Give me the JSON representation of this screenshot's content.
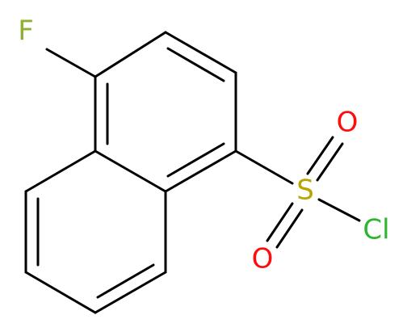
{
  "molecule": {
    "atoms": [
      {
        "label": "F"
      },
      {
        "label": "S"
      },
      {
        "label": "O"
      },
      {
        "label": "O"
      },
      {
        "label": "Cl"
      }
    ]
  }
}
